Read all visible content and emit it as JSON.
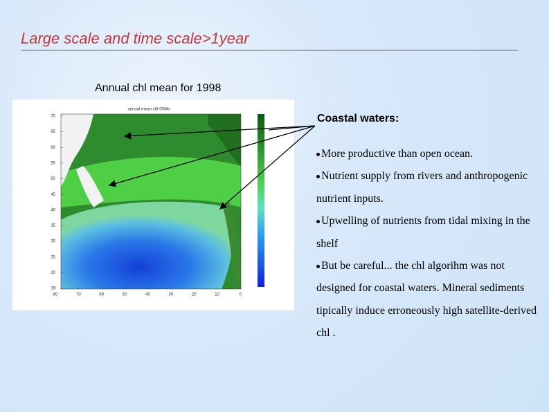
{
  "title": "Large scale and time scale>1year",
  "figure": {
    "caption": "Annual chl mean for 1998",
    "map_title": "annual mean chl SWifs",
    "yticks": [
      70,
      65,
      60,
      55,
      50,
      45,
      40,
      35,
      30,
      25,
      20,
      15
    ],
    "xticks": [
      80,
      70,
      60,
      50,
      40,
      30,
      20,
      10,
      0
    ]
  },
  "text": {
    "heading": "Coastal waters:",
    "bullets": [
      "More productive than open ocean.",
      "Nutrient supply from rivers and anthropogenic nutrient inputs.",
      "Upwelling of nutrients from tidal mixing in the shelf",
      "But be careful... the chl algorihm was not designed for coastal waters. Mineral sediments tipically induce  erroneously high satellite-derived chl ."
    ]
  }
}
